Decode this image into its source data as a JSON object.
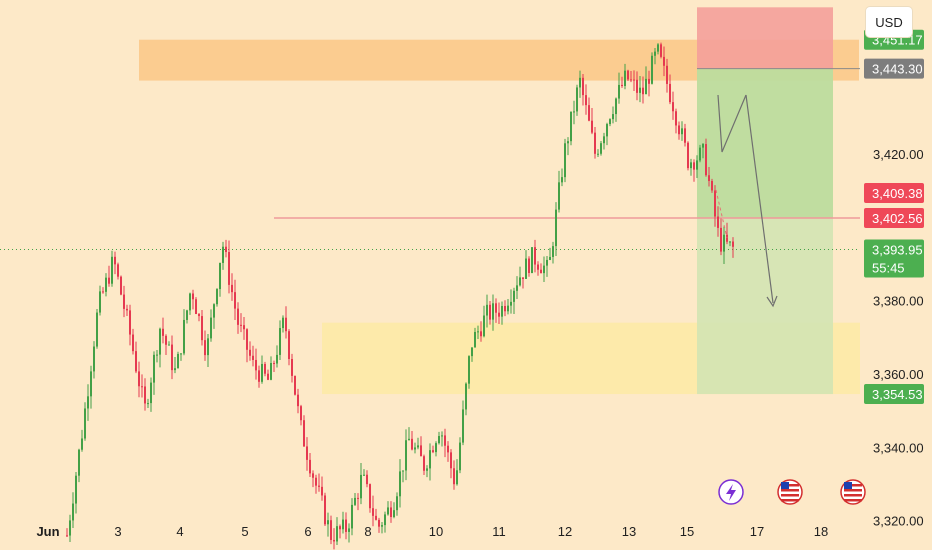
{
  "currency_label": "USD",
  "colors": {
    "background": "#fde9c8",
    "up": "#43a047",
    "down": "#e53950",
    "resistance_zone": "#fbc98a",
    "support_zone": "#fdeaa6",
    "stop_zone": "#f4a09a",
    "target_zone": "#bddc9e",
    "target_zone_light": "#d3e4b3",
    "red_line": "#ef9a9a",
    "current_line": "#43a047",
    "badge_gray": "#7d7d7d",
    "badge_red": "#ef4858",
    "badge_green": "#4caf50",
    "event_lightning": "#7b2fd4"
  },
  "chart_data": {
    "type": "candlestick",
    "ylim": [
      3312,
      3462
    ],
    "y_ticks": [
      "3,320.00",
      "3,340.00",
      "3,360.00",
      "3,380.00",
      "3,420.00"
    ],
    "x_ticks": [
      "Jun",
      "3",
      "4",
      "5",
      "6",
      "8",
      "10",
      "11",
      "12",
      "13",
      "15",
      "17",
      "18"
    ],
    "badges": [
      {
        "label": "3,451.17",
        "value": 3451.17,
        "color": "#4caf50"
      },
      {
        "label": "3,443.30",
        "value": 3443.3,
        "color": "#7d7d7d"
      },
      {
        "label": "3,409.38",
        "value": 3409.38,
        "color": "#ef4858"
      },
      {
        "label": "3,402.56",
        "value": 3402.56,
        "color": "#ef4858"
      },
      {
        "label": "3,393.95",
        "value": 3393.95,
        "color": "#4caf50",
        "sub": "55:45"
      },
      {
        "label": "3,354.53",
        "value": 3354.53,
        "color": "#4caf50"
      }
    ],
    "price_path": [
      [
        0,
        3316
      ],
      [
        1,
        3345
      ],
      [
        2,
        3378
      ],
      [
        3,
        3391
      ],
      [
        4,
        3372
      ],
      [
        5,
        3350
      ],
      [
        6,
        3373
      ],
      [
        7,
        3360
      ],
      [
        8,
        3384
      ],
      [
        9,
        3366
      ],
      [
        10,
        3396
      ],
      [
        11,
        3374
      ],
      [
        12,
        3362
      ],
      [
        13,
        3358
      ],
      [
        14,
        3375
      ],
      [
        15,
        3346
      ],
      [
        16,
        3330
      ],
      [
        17,
        3316
      ],
      [
        18,
        3318
      ],
      [
        19,
        3332
      ],
      [
        20,
        3318
      ],
      [
        21,
        3325
      ],
      [
        22,
        3342
      ],
      [
        23,
        3335
      ],
      [
        24,
        3346
      ],
      [
        25,
        3330
      ],
      [
        26,
        3368
      ],
      [
        27,
        3376
      ],
      [
        28,
        3378
      ],
      [
        29,
        3386
      ],
      [
        30,
        3392
      ],
      [
        31,
        3388
      ],
      [
        32,
        3420
      ],
      [
        33,
        3440
      ],
      [
        34,
        3420
      ],
      [
        35,
        3432
      ],
      [
        36,
        3441
      ],
      [
        37,
        3436
      ],
      [
        38,
        3448
      ],
      [
        39,
        3434
      ],
      [
        40,
        3418
      ],
      [
        41,
        3420
      ],
      [
        42,
        3396
      ],
      [
        43,
        3393.95
      ]
    ],
    "levels": {
      "resistance_zone": [
        3443.3,
        3451.17
      ],
      "support_zone": [
        3354.53,
        3374
      ],
      "stop_zone": [
        3443.3,
        3460
      ],
      "target_zone": [
        3354.53,
        3443.3
      ],
      "red_line": 3402.56,
      "current_price": 3393.95
    }
  }
}
